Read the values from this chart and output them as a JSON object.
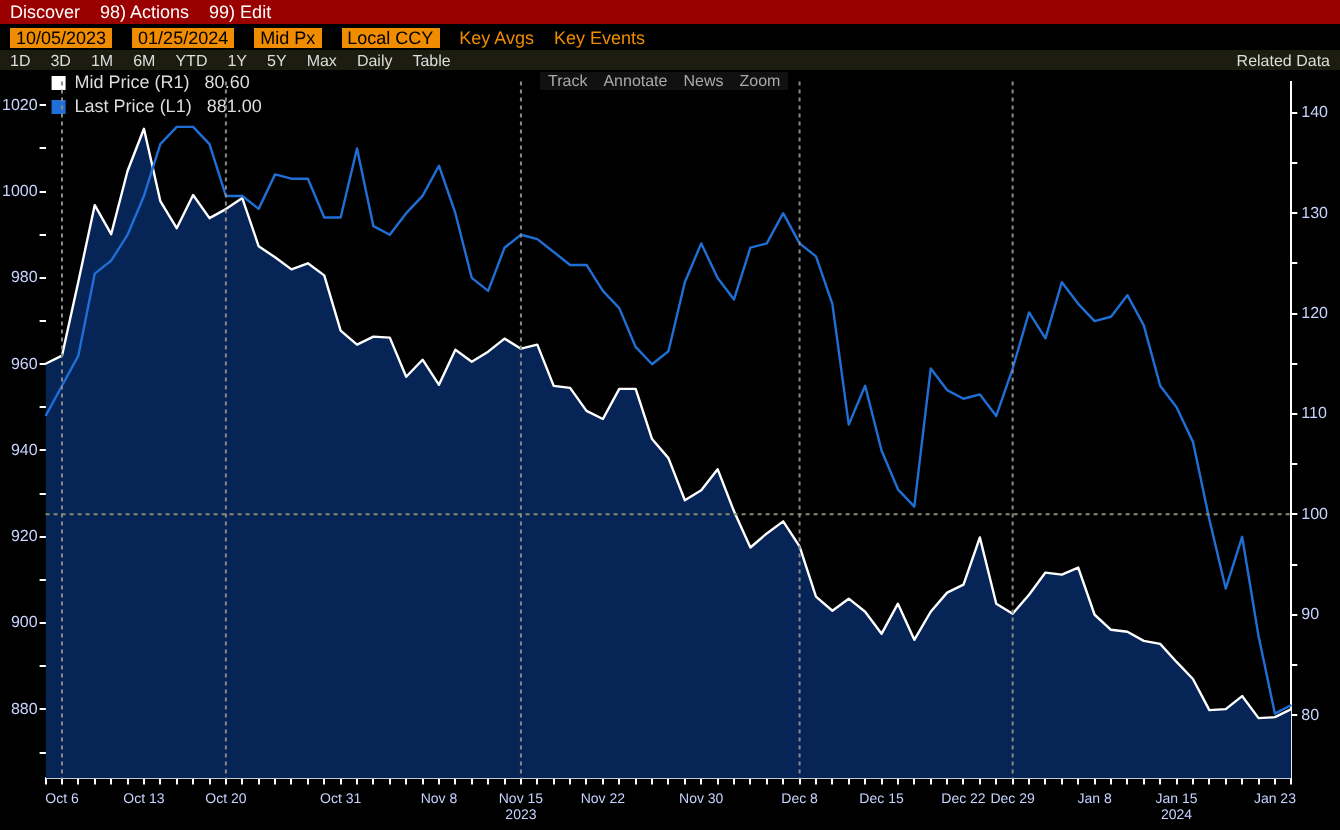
{
  "chart_data": {
    "type": "line",
    "categories": [
      null,
      "Oct 6",
      null,
      null,
      null,
      null,
      "Oct 13",
      null,
      null,
      null,
      null,
      "Oct 20",
      null,
      null,
      null,
      null,
      null,
      null,
      "Oct 31",
      null,
      null,
      null,
      null,
      null,
      "Nov 8",
      null,
      null,
      null,
      null,
      "Nov 15\n2023",
      null,
      null,
      null,
      null,
      "Nov 22",
      null,
      null,
      null,
      null,
      null,
      "Nov 30",
      null,
      null,
      null,
      null,
      null,
      "Dec 8",
      null,
      null,
      null,
      null,
      "Dec 15",
      null,
      null,
      null,
      null,
      "Dec 22",
      null,
      null,
      "Dec 29",
      null,
      null,
      null,
      null,
      "Jan 8",
      null,
      null,
      null,
      null,
      "Jan 15\n2024",
      null,
      null,
      null,
      null,
      null,
      "Jan 23",
      null
    ],
    "series": [
      {
        "name": "Mid Price (R1)   80.60",
        "type": "area",
        "axis": "y2",
        "color": "#ffffff",
        "values": [
          115.0,
          115.8,
          123.2,
          130.8,
          127.9,
          134.2,
          138.4,
          131.2,
          128.5,
          131.8,
          129.5,
          130.4,
          131.5,
          126.7,
          125.6,
          124.4,
          125.0,
          123.8,
          118.3,
          116.9,
          117.7,
          117.6,
          113.7,
          115.4,
          112.9,
          116.4,
          115.2,
          116.2,
          117.5,
          116.5,
          116.9,
          112.8,
          112.6,
          110.3,
          109.5,
          112.5,
          112.5,
          107.5,
          105.6,
          101.4,
          102.4,
          104.5,
          100.3,
          96.7,
          98.1,
          99.3,
          96.8,
          91.8,
          90.4,
          91.6,
          90.3,
          88.1,
          91.1,
          87.5,
          90.3,
          92.2,
          93.0,
          97.7,
          91.1,
          90.1,
          92.0,
          94.2,
          94.0,
          94.7,
          90.0,
          88.5,
          88.3,
          87.4,
          87.1,
          85.3,
          83.6,
          80.5,
          80.6,
          81.9,
          79.7,
          79.8,
          80.6
        ]
      },
      {
        "name": "Last Price (L1)   881.00",
        "type": "line",
        "color": "#1f6fd6",
        "values": [
          948,
          955,
          962,
          981,
          984,
          990,
          999,
          1011,
          1015,
          1015,
          1011,
          999,
          999,
          996,
          1004,
          1003,
          1003,
          994,
          994,
          1010,
          992,
          990,
          995,
          999,
          1006,
          995,
          980,
          977,
          987,
          990,
          989,
          986,
          983,
          983,
          977,
          973,
          964,
          960,
          963,
          979,
          988,
          980,
          975,
          987,
          988,
          995,
          988,
          985,
          974,
          946,
          955,
          940,
          931,
          927,
          959,
          954,
          952,
          953,
          948,
          959,
          972,
          966,
          979,
          974,
          970,
          971,
          976,
          969,
          955,
          950,
          942,
          924,
          908,
          920,
          897,
          879,
          881
        ]
      }
    ],
    "ylim": [
      864,
      1025.5
    ],
    "yticks": [
      {
        "value": 870,
        "label": null
      },
      880,
      {
        "value": 890,
        "label": null
      },
      900,
      {
        "value": 910,
        "label": null
      },
      920,
      {
        "value": 930,
        "label": null
      },
      940,
      {
        "value": 950,
        "label": null
      },
      960,
      {
        "value": 970,
        "label": null
      },
      980,
      {
        "value": 990,
        "label": null
      },
      1000,
      {
        "value": 1010,
        "label": null
      },
      1020
    ],
    "y2lim": [
      73.7,
      143.1
    ],
    "y2ticks": [
      80,
      {
        "value": 85,
        "label": null
      },
      90,
      {
        "value": 95,
        "label": null
      },
      100,
      {
        "value": 105,
        "label": null
      },
      110,
      {
        "value": 115,
        "label": null
      },
      120,
      {
        "value": 125,
        "label": null
      },
      130,
      {
        "value": 135,
        "label": null
      },
      140
    ],
    "ref_lines": [
      {
        "axis": "x",
        "value": "Oct 6",
        "color": "#8a8a8a",
        "line_style": "dotted"
      },
      {
        "axis": "x",
        "value": "Oct 20",
        "color": "#8a8a8a",
        "line_style": "dotted"
      },
      {
        "axis": "x",
        "value": "Nov 15\n2023",
        "color": "#8a8a8a",
        "line_style": "dotted"
      },
      {
        "axis": "x",
        "value": "Dec 8",
        "color": "#8a8a8a",
        "line_style": "dotted"
      },
      {
        "axis": "x",
        "value": "Dec 29",
        "color": "#8a8a8a",
        "line_style": "dotted"
      },
      {
        "axis": "y2",
        "value": 100,
        "color": "#8c8c6a",
        "line_style": "dotted"
      }
    ],
    "grid": false,
    "legend": "top left",
    "marker": "none",
    "annotations": [
      "Discover",
      "98) Actions",
      "99) Edit",
      "10/05/2023",
      "01/25/2024",
      "Mid Px",
      "Local CCY",
      "Key Avgs",
      "Key Events",
      "1D",
      "3D",
      "1M",
      "6M",
      "YTD",
      "1Y",
      "5Y",
      "Max",
      "Daily",
      "Table",
      "Related Data",
      "Track",
      "Annotate",
      "News",
      "Zoom"
    ]
  }
}
